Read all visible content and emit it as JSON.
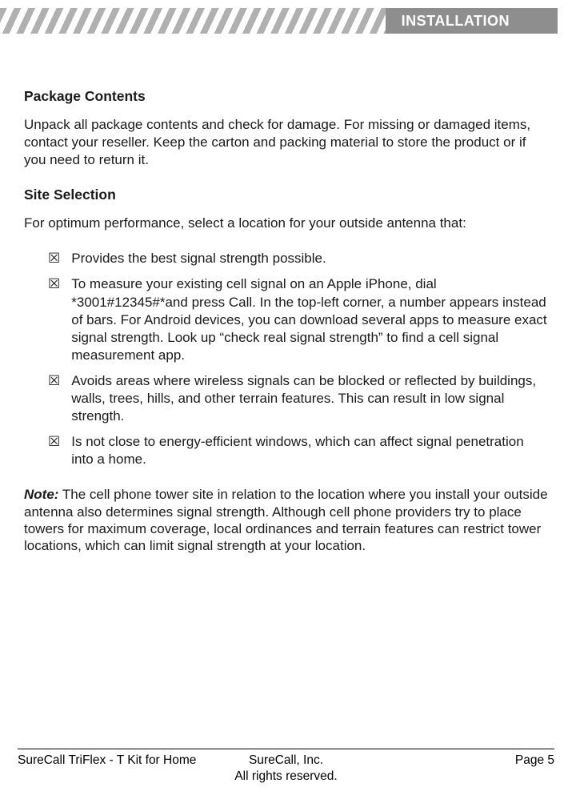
{
  "header": {
    "title": "INSTALLATION",
    "title_bg": "#8e8e8e",
    "title_color": "#ffffff"
  },
  "sections": {
    "package": {
      "heading": "Package Contents",
      "body": "Unpack all package contents and check for damage. For missing or damaged items, contact your reseller. Keep the carton and packing material to store the product or if you need to return it."
    },
    "site": {
      "heading": "Site Selection",
      "intro": "For optimum performance, select a location for your outside antenna that:",
      "items": [
        "Provides the best signal strength possible.",
        "To measure your existing cell signal on an Apple iPhone, dial *3001#12345#*and press Call. In the top-left corner, a number appears instead of bars. For Android devices, you can download several apps to measure exact signal strength. Look up “check real signal strength” to find a cell signal measurement app.",
        "Avoids areas where wireless signals can be blocked or reflected by buildings, walls, trees, hills, and other terrain features. This can result in low signal strength.",
        "Is not close to energy-efficient windows, which can affect signal penetration into a home."
      ]
    },
    "note": {
      "label": "Note:",
      "text": " The cell phone tower site in relation to the location where you install your outside antenna also determines signal strength. Although cell phone providers try to place towers for maximum coverage, local ordinances and terrain features can restrict tower locations, which can limit signal strength at your location."
    }
  },
  "icons": {
    "bullet": "☒"
  },
  "footer": {
    "left": "SureCall TriFlex - T Kit for Home",
    "center_line1": "SureCall, Inc.",
    "center_line2": "All rights reserved.",
    "right": "Page 5"
  },
  "colors": {
    "text": "#1a1a1a",
    "background": "#ffffff"
  }
}
